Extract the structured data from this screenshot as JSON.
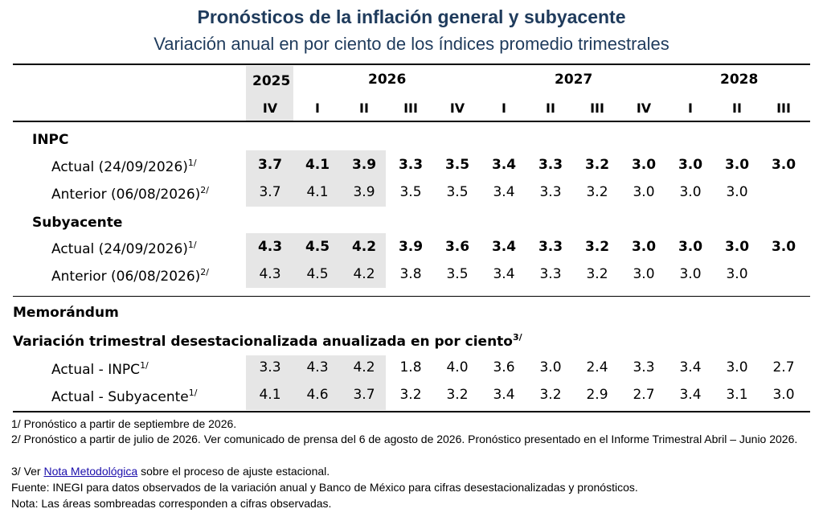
{
  "title": "Pronósticos de la inflación general y subyacente",
  "subtitle": "Variación anual en por ciento de los índices promedio trimestrales",
  "years": [
    "2025",
    "2026",
    "2027",
    "2028"
  ],
  "quarters": [
    "IV",
    "I",
    "II",
    "III",
    "IV",
    "I",
    "II",
    "III",
    "IV",
    "I",
    "II",
    "III"
  ],
  "sections": {
    "inpc": "INPC",
    "subyacente": "Subyacente",
    "memorandum": "Memorándum",
    "variacion": "Variación trimestral desestacionalizada anualizada en por ciento",
    "variacion_note": "3/"
  },
  "rows": [
    {
      "label": "Actual (24/09/2026)",
      "note": "1/",
      "bold": true,
      "values": [
        "3.7",
        "4.1",
        "3.9",
        "3.3",
        "3.5",
        "3.4",
        "3.3",
        "3.2",
        "3.0",
        "3.0",
        "3.0",
        "3.0"
      ]
    },
    {
      "label": "Anterior (06/08/2026)",
      "note": "2/",
      "bold": false,
      "values": [
        "3.7",
        "4.1",
        "3.9",
        "3.5",
        "3.5",
        "3.4",
        "3.3",
        "3.2",
        "3.0",
        "3.0",
        "3.0",
        ""
      ]
    },
    {
      "label": "Actual (24/09/2026)",
      "note": "1/",
      "bold": true,
      "values": [
        "4.3",
        "4.5",
        "4.2",
        "3.9",
        "3.6",
        "3.4",
        "3.3",
        "3.2",
        "3.0",
        "3.0",
        "3.0",
        "3.0"
      ]
    },
    {
      "label": "Anterior (06/08/2026)",
      "note": "2/",
      "bold": false,
      "values": [
        "4.3",
        "4.5",
        "4.2",
        "3.8",
        "3.5",
        "3.4",
        "3.3",
        "3.2",
        "3.0",
        "3.0",
        "3.0",
        ""
      ]
    },
    {
      "label": "Actual - INPC",
      "note": "1/",
      "bold": false,
      "values": [
        "3.3",
        "4.3",
        "4.2",
        "1.8",
        "4.0",
        "3.6",
        "3.0",
        "2.4",
        "3.3",
        "3.4",
        "3.0",
        "2.7"
      ]
    },
    {
      "label": "Actual - Subyacente",
      "note": "1/",
      "bold": false,
      "values": [
        "4.1",
        "4.6",
        "3.7",
        "3.2",
        "3.2",
        "3.4",
        "3.2",
        "2.9",
        "2.7",
        "3.4",
        "3.1",
        "3.0"
      ]
    }
  ],
  "footnotes": {
    "f1": "1/ Pronóstico a partir de septiembre de 2026.",
    "f2": "2/ Pronóstico a partir de julio de 2026. Ver comunicado de prensa del 6 de agosto de 2026. Pronóstico presentado en el Informe Trimestral Abril – Junio 2026.",
    "f3_prefix": "3/ Ver ",
    "f3_link": "Nota Metodológica",
    "f3_suffix": " sobre el proceso de ajuste estacional.",
    "f4": "Fuente: INEGI para datos observados de la variación anual y Banco de México para cifras desestacionalizadas y pronósticos.",
    "f5": "Nota: Las áreas sombreadas corresponden a cifras observadas."
  },
  "colors": {
    "title": "#1f3b5c",
    "shade": "#e6e6e6",
    "link": "#1a0dab"
  }
}
